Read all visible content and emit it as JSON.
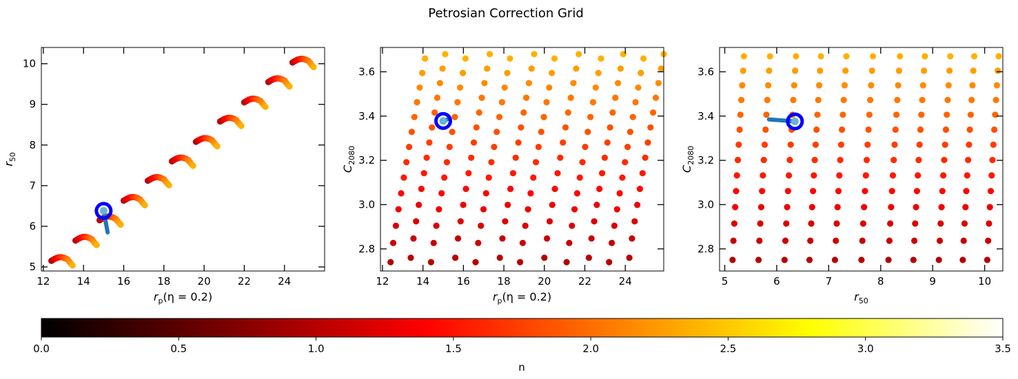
{
  "figure": {
    "title": "Petrosian Correction Grid"
  },
  "colors": {
    "colormap": [
      "#000000",
      "#800000",
      "#ff0000",
      "#ff8000",
      "#ffff00",
      "#ffffff"
    ],
    "marker_outline": "#0000ff",
    "connector": "#1f77b4"
  },
  "chart_data": [
    {
      "type": "scatter",
      "title": "",
      "xlabel": "r_p(η = 0.2)",
      "ylabel": "r_50",
      "xlim": [
        11.9,
        26.0
      ],
      "ylim": [
        4.9,
        10.4
      ],
      "xticks": [
        12,
        14,
        16,
        18,
        20,
        22,
        24
      ],
      "yticks": [
        5,
        6,
        7,
        8,
        9,
        10
      ],
      "color_by": "n",
      "grid": false,
      "highlight": {
        "x": 15.0,
        "y": 6.38
      },
      "highlight_connector": [
        [
          15.0,
          6.38
        ],
        [
          15.2,
          5.85
        ]
      ]
    },
    {
      "type": "scatter",
      "title": "",
      "xlabel": "r_p(η = 0.2)",
      "ylabel": "C_2080",
      "xlim": [
        11.9,
        25.9
      ],
      "ylim": [
        2.7,
        3.71
      ],
      "xticks": [
        12,
        14,
        16,
        18,
        20,
        22,
        24
      ],
      "yticks": [
        2.8,
        3.0,
        3.2,
        3.4,
        3.6
      ],
      "color_by": "n",
      "grid": false,
      "highlight": {
        "x": 15.0,
        "y": 3.378
      },
      "highlight_connector": [
        [
          15.0,
          3.378
        ],
        [
          15.2,
          3.385
        ]
      ]
    },
    {
      "type": "scatter",
      "title": "",
      "xlabel": "r_50",
      "ylabel": "C_2080",
      "xlim": [
        4.9,
        10.35
      ],
      "ylim": [
        2.7,
        3.71
      ],
      "xticks": [
        5,
        6,
        7,
        8,
        9,
        10
      ],
      "yticks": [
        2.8,
        3.0,
        3.2,
        3.4,
        3.6
      ],
      "color_by": "n",
      "grid": false,
      "highlight": {
        "x": 6.35,
        "y": 3.376
      },
      "highlight_connector": [
        [
          6.35,
          3.376
        ],
        [
          5.85,
          3.385
        ]
      ]
    }
  ],
  "colorbar": {
    "label": "n",
    "range": [
      0.0,
      3.5
    ],
    "ticks": [
      "0.0",
      "0.5",
      "1.0",
      "1.5",
      "2.0",
      "2.5",
      "3.0",
      "3.5"
    ],
    "orientation": "horizontal",
    "placement": "bottom"
  }
}
